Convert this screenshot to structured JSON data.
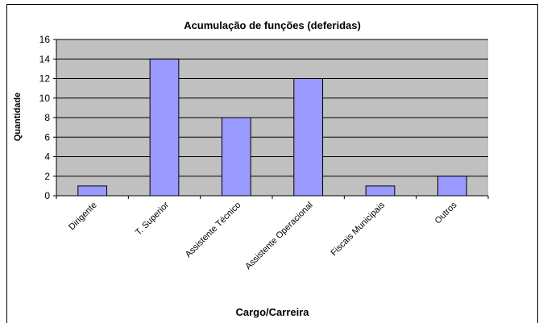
{
  "chart_data": {
    "type": "bar",
    "title": "Acumulação de funções (deferidas)",
    "x_label": "Cargo/Carreira",
    "y_label": "Quantidade",
    "categories": [
      "Dirigente",
      "T. Superior",
      "Assistente Técnico",
      "Assistente Operacional",
      "Fiscais Municipais",
      "Outros"
    ],
    "values": [
      1,
      14,
      8,
      12,
      1,
      2
    ],
    "color": "#9999ff",
    "ylim": [
      0,
      16
    ],
    "yticks": [
      0,
      2,
      4,
      6,
      8,
      10,
      12,
      14,
      16
    ],
    "grid": true
  }
}
